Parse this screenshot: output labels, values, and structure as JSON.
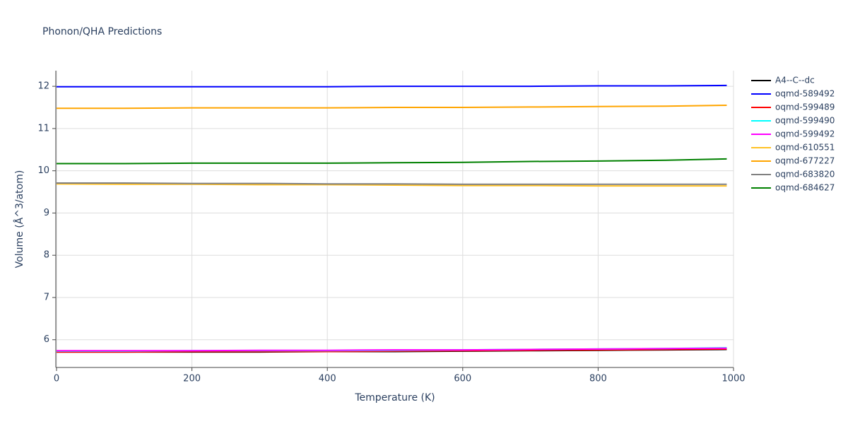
{
  "chart_data": {
    "type": "line",
    "title": "Phonon/QHA Predictions",
    "xlabel": "Temperature (K)",
    "ylabel": "Volume (Å^3/atom)",
    "x": [
      0,
      100,
      200,
      300,
      400,
      500,
      600,
      700,
      800,
      900,
      990
    ],
    "series": [
      {
        "name": "A4--C--dc",
        "color": "#000000",
        "values": [
          5.71,
          5.71,
          5.71,
          5.71,
          5.72,
          5.72,
          5.73,
          5.74,
          5.75,
          5.76,
          5.77
        ]
      },
      {
        "name": "oqmd-589492",
        "color": "#0000ff",
        "values": [
          11.99,
          11.99,
          11.99,
          11.99,
          11.99,
          12.0,
          12.0,
          12.0,
          12.01,
          12.01,
          12.02
        ]
      },
      {
        "name": "oqmd-599489",
        "color": "#ff0000",
        "values": [
          5.71,
          5.71,
          5.72,
          5.72,
          5.72,
          5.73,
          5.74,
          5.75,
          5.76,
          5.77,
          5.78
        ]
      },
      {
        "name": "oqmd-599490",
        "color": "#00ffff",
        "values": [
          5.73,
          5.73,
          5.74,
          5.74,
          5.74,
          5.75,
          5.76,
          5.77,
          5.78,
          5.79,
          5.81
        ]
      },
      {
        "name": "oqmd-599492",
        "color": "#ff00ff",
        "values": [
          5.74,
          5.74,
          5.74,
          5.75,
          5.75,
          5.76,
          5.76,
          5.77,
          5.78,
          5.79,
          5.8
        ]
      },
      {
        "name": "oqmd-610551",
        "color": "#ffc125",
        "values": [
          9.69,
          9.68,
          9.68,
          9.67,
          9.67,
          9.66,
          9.65,
          9.65,
          9.64,
          9.64,
          9.64
        ]
      },
      {
        "name": "oqmd-677227",
        "color": "#ffa500",
        "values": [
          11.48,
          11.48,
          11.49,
          11.49,
          11.49,
          11.5,
          11.5,
          11.51,
          11.52,
          11.53,
          11.55
        ]
      },
      {
        "name": "oqmd-683820",
        "color": "#808080",
        "values": [
          9.71,
          9.71,
          9.7,
          9.7,
          9.69,
          9.69,
          9.68,
          9.68,
          9.68,
          9.68,
          9.68
        ]
      },
      {
        "name": "oqmd-684627",
        "color": "#008000",
        "values": [
          10.17,
          10.17,
          10.18,
          10.18,
          10.18,
          10.19,
          10.2,
          10.22,
          10.23,
          10.25,
          10.28
        ]
      }
    ],
    "xlim": [
      0,
      1000
    ],
    "xticks": [
      0,
      200,
      400,
      600,
      800,
      1000
    ],
    "ylim": [
      5.36,
      12.37
    ],
    "yticks": [
      6,
      7,
      8,
      9,
      10,
      11,
      12
    ],
    "grid": true,
    "legend": "right"
  }
}
